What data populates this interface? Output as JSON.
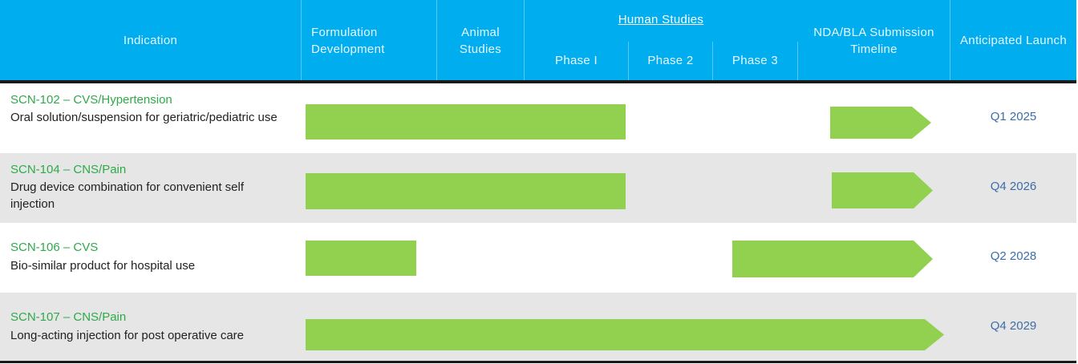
{
  "header": {
    "indication": "Indication",
    "formulation": "Formulation Development",
    "animal": "Animal Studies",
    "human_studies": "Human Studies",
    "phase1": "Phase I",
    "phase2": "Phase 2",
    "phase3": "Phase 3",
    "nda": "NDA/BLA Submission Timeline",
    "launch": "Anticipated Launch"
  },
  "rows": [
    {
      "code": "SCN-102 – CVS/Hypertension",
      "description": "Oral solution/suspension for geriatric/pediatric use",
      "launch": "Q1 2025"
    },
    {
      "code": "SCN-104 – CNS/Pain",
      "description": "Drug device combination for convenient self injection",
      "launch": "Q4 2026"
    },
    {
      "code": "SCN-106 – CVS",
      "description": "Bio-similar product for hospital use",
      "launch": "Q2 2028"
    },
    {
      "code": "SCN-107 – CNS/Pain",
      "description": "Long-acting injection for post operative care",
      "launch": "Q4 2029"
    }
  ],
  "colors": {
    "header_bg": "#00adef",
    "bar": "#92d050",
    "code_text": "#2eaa4a",
    "launch_text": "#3d6da8",
    "alt_row": "#e6e6e6"
  }
}
